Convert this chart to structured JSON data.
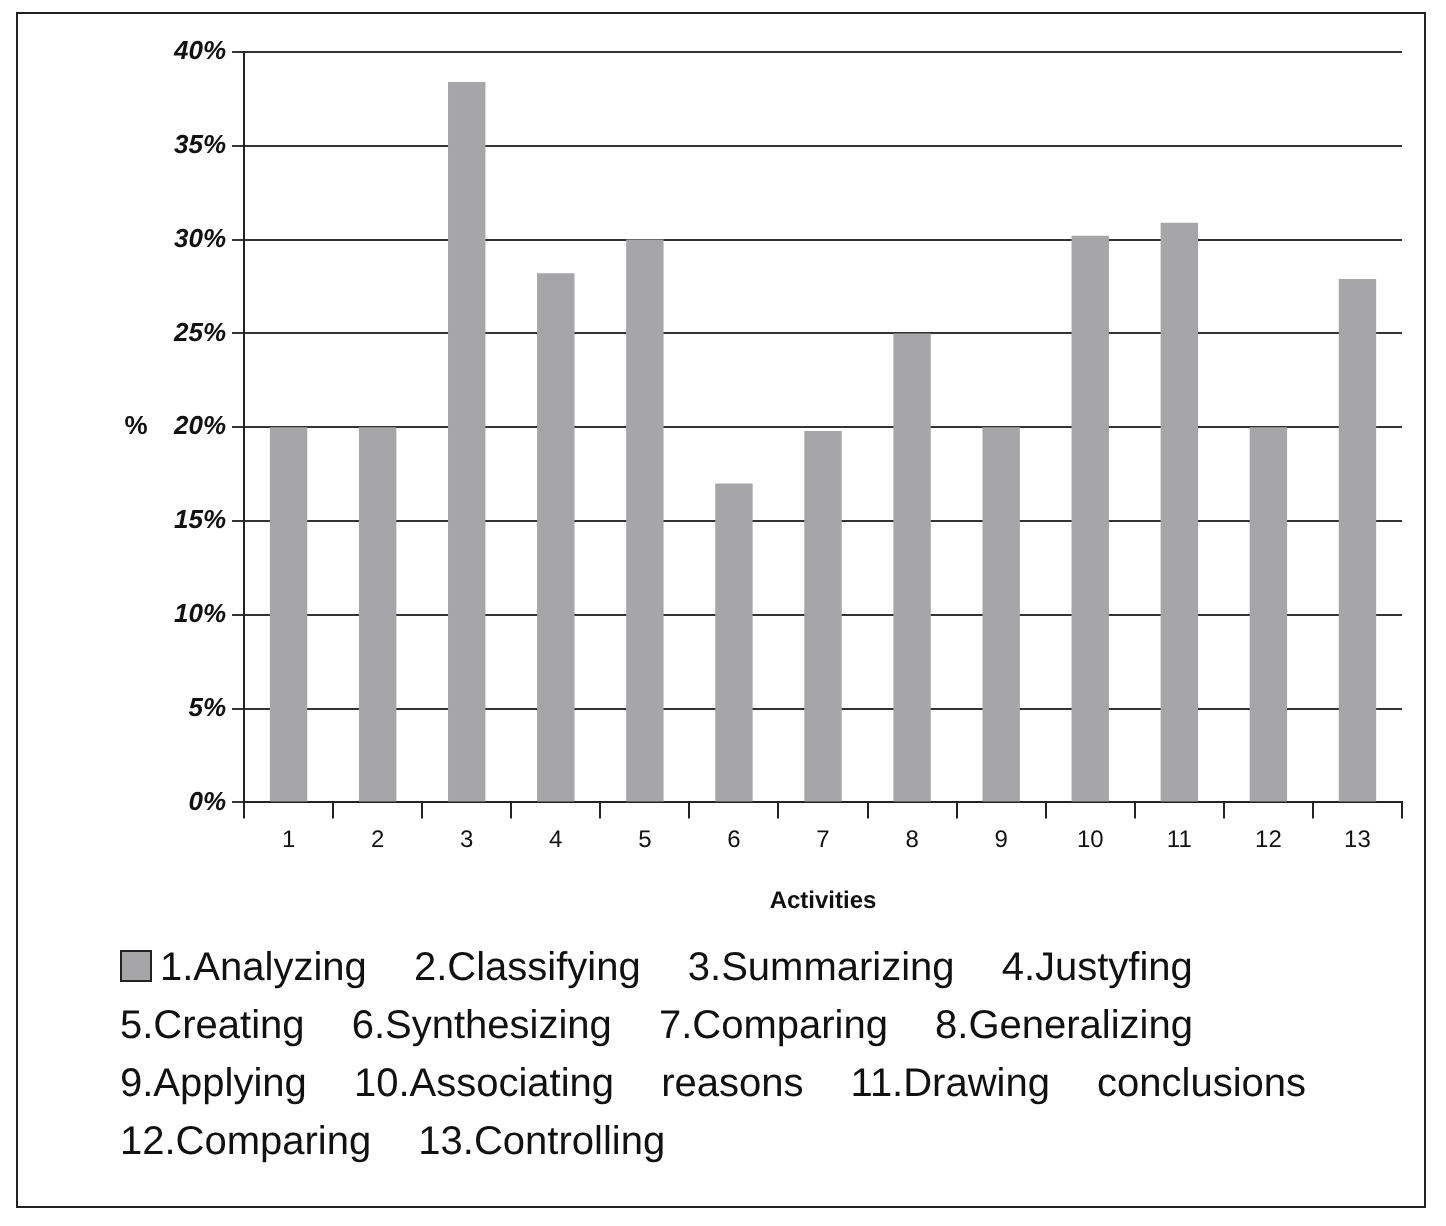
{
  "chart_data": {
    "type": "bar",
    "xlabel": "Activities",
    "ylabel": "%",
    "categories": [
      "1",
      "2",
      "3",
      "4",
      "5",
      "6",
      "7",
      "8",
      "9",
      "10",
      "11",
      "12",
      "13"
    ],
    "series": [
      {
        "name": "1.Analyzing 2.Classifying 3.Summarizing 4.Justyfing 5.Creating 6.Synthesizing 7.Comparing 8.Generalizing 9.Applying 10.Associating reasons 11.Drawing conclusions 12.Comparing 13.Controlling",
        "color": "#a6a6a8",
        "values": [
          20,
          20,
          38.4,
          28.2,
          30,
          17,
          19.8,
          25,
          20,
          30.2,
          30.9,
          20,
          27.9
        ]
      }
    ],
    "ylim": [
      0,
      40
    ],
    "yticks": [
      {
        "value": 0,
        "label": "0%"
      },
      {
        "value": 5,
        "label": "5%"
      },
      {
        "value": 10,
        "label": "10%"
      },
      {
        "value": 15,
        "label": "15%"
      },
      {
        "value": 20,
        "label": "20%"
      },
      {
        "value": 25,
        "label": "25%"
      },
      {
        "value": 30,
        "label": "30%"
      },
      {
        "value": 35,
        "label": "35%"
      },
      {
        "value": 40,
        "label": "40%"
      }
    ],
    "grid": "y",
    "legend": "bottom"
  }
}
